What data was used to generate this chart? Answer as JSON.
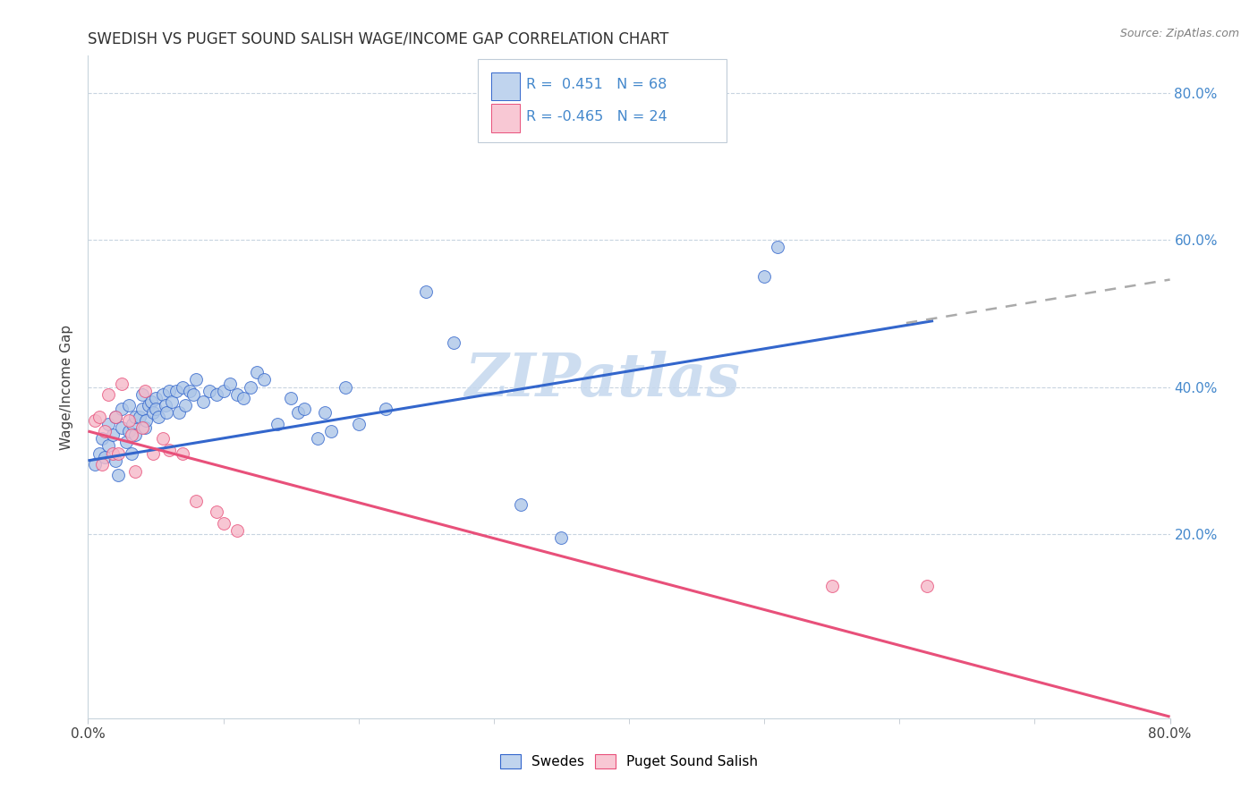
{
  "title": "SWEDISH VS PUGET SOUND SALISH WAGE/INCOME GAP CORRELATION CHART",
  "source": "Source: ZipAtlas.com",
  "ylabel": "Wage/Income Gap",
  "xlim": [
    0.0,
    0.8
  ],
  "ylim": [
    -0.05,
    0.85
  ],
  "yticks": [
    0.0,
    0.2,
    0.4,
    0.6,
    0.8
  ],
  "right_ytick_labels": [
    "20.0%",
    "40.0%",
    "60.0%",
    "80.0%"
  ],
  "right_yticks": [
    0.2,
    0.4,
    0.6,
    0.8
  ],
  "blue_R": 0.451,
  "blue_N": 68,
  "pink_R": -0.465,
  "pink_N": 24,
  "blue_color": "#adc6e8",
  "pink_color": "#f5b8c8",
  "blue_line_color": "#3366cc",
  "pink_line_color": "#e8507a",
  "dashed_line_color": "#aaaaaa",
  "legend_blue_fill": "#c0d4ee",
  "legend_pink_fill": "#f8c8d4",
  "blue_scatter_x": [
    0.005,
    0.008,
    0.01,
    0.012,
    0.015,
    0.015,
    0.018,
    0.02,
    0.02,
    0.022,
    0.025,
    0.025,
    0.028,
    0.03,
    0.03,
    0.032,
    0.033,
    0.035,
    0.035,
    0.038,
    0.04,
    0.04,
    0.042,
    0.043,
    0.045,
    0.047,
    0.048,
    0.05,
    0.05,
    0.052,
    0.055,
    0.057,
    0.058,
    0.06,
    0.062,
    0.065,
    0.067,
    0.07,
    0.072,
    0.075,
    0.078,
    0.08,
    0.085,
    0.09,
    0.095,
    0.1,
    0.105,
    0.11,
    0.115,
    0.12,
    0.125,
    0.13,
    0.14,
    0.15,
    0.155,
    0.16,
    0.17,
    0.175,
    0.18,
    0.19,
    0.2,
    0.22,
    0.25,
    0.27,
    0.32,
    0.35,
    0.5,
    0.51
  ],
  "blue_scatter_y": [
    0.295,
    0.31,
    0.33,
    0.305,
    0.35,
    0.32,
    0.335,
    0.3,
    0.36,
    0.28,
    0.345,
    0.37,
    0.325,
    0.34,
    0.375,
    0.31,
    0.35,
    0.36,
    0.335,
    0.36,
    0.37,
    0.39,
    0.345,
    0.355,
    0.375,
    0.38,
    0.365,
    0.385,
    0.37,
    0.36,
    0.39,
    0.375,
    0.365,
    0.395,
    0.38,
    0.395,
    0.365,
    0.4,
    0.375,
    0.395,
    0.39,
    0.41,
    0.38,
    0.395,
    0.39,
    0.395,
    0.405,
    0.39,
    0.385,
    0.4,
    0.42,
    0.41,
    0.35,
    0.385,
    0.365,
    0.37,
    0.33,
    0.365,
    0.34,
    0.4,
    0.35,
    0.37,
    0.53,
    0.46,
    0.24,
    0.195,
    0.55,
    0.59
  ],
  "pink_scatter_x": [
    0.005,
    0.008,
    0.01,
    0.012,
    0.015,
    0.018,
    0.02,
    0.022,
    0.025,
    0.03,
    0.032,
    0.035,
    0.04,
    0.042,
    0.048,
    0.055,
    0.06,
    0.07,
    0.08,
    0.095,
    0.1,
    0.11,
    0.55,
    0.62
  ],
  "pink_scatter_y": [
    0.355,
    0.36,
    0.295,
    0.34,
    0.39,
    0.31,
    0.36,
    0.31,
    0.405,
    0.355,
    0.335,
    0.285,
    0.345,
    0.395,
    0.31,
    0.33,
    0.315,
    0.31,
    0.245,
    0.23,
    0.215,
    0.205,
    0.13,
    0.13
  ],
  "blue_line_x0": 0.0,
  "blue_line_x1": 0.625,
  "blue_line_y0": 0.3,
  "blue_line_y1": 0.49,
  "pink_line_x0": 0.0,
  "pink_line_x1": 0.8,
  "pink_line_y0": 0.34,
  "pink_line_y1": -0.048,
  "dashed_line_x0": 0.605,
  "dashed_line_x1": 0.8,
  "dashed_line_y0": 0.487,
  "dashed_line_y1": 0.546,
  "watermark": "ZIPatlas",
  "watermark_color": "#c5d8ee",
  "background_color": "#ffffff",
  "grid_color": "#c8d4e0",
  "title_fontsize": 13,
  "axis_label_color": "#404040",
  "right_axis_color": "#4488cc"
}
